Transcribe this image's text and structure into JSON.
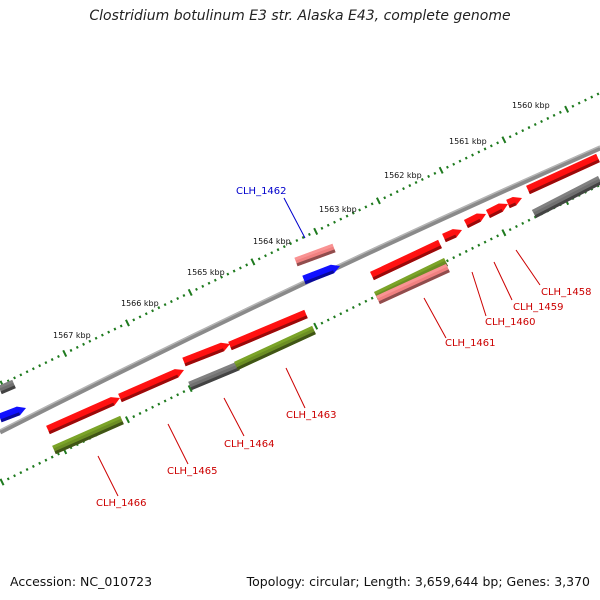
{
  "title": "Clostridium botulinum E3 str. Alaska E43, complete genome",
  "footer": {
    "accession": "Accession: NC_010723",
    "summary": "Topology: circular; Length: 3,659,644 bp; Genes: 3,370"
  },
  "colors": {
    "forward_cds": "#ff1010",
    "pseudo": "#f08080",
    "olive": "#6b8e23",
    "gray": "#707070",
    "blue": "#1010ff",
    "label_red": "#cc0000",
    "label_blue": "#0000cc",
    "tick_green": "#1e7a1e"
  },
  "kbp_ticks": [
    "1560 kbp",
    "1561 kbp",
    "1562 kbp",
    "1563 kbp",
    "1564 kbp",
    "1565 kbp",
    "1566 kbp",
    "1567 kbp"
  ],
  "gene_labels": [
    "CLH_1458",
    "CLH_1459",
    "CLH_1460",
    "CLH_1461",
    "CLH_1462",
    "CLH_1463",
    "CLH_1464",
    "CLH_1465",
    "CLH_1466"
  ]
}
